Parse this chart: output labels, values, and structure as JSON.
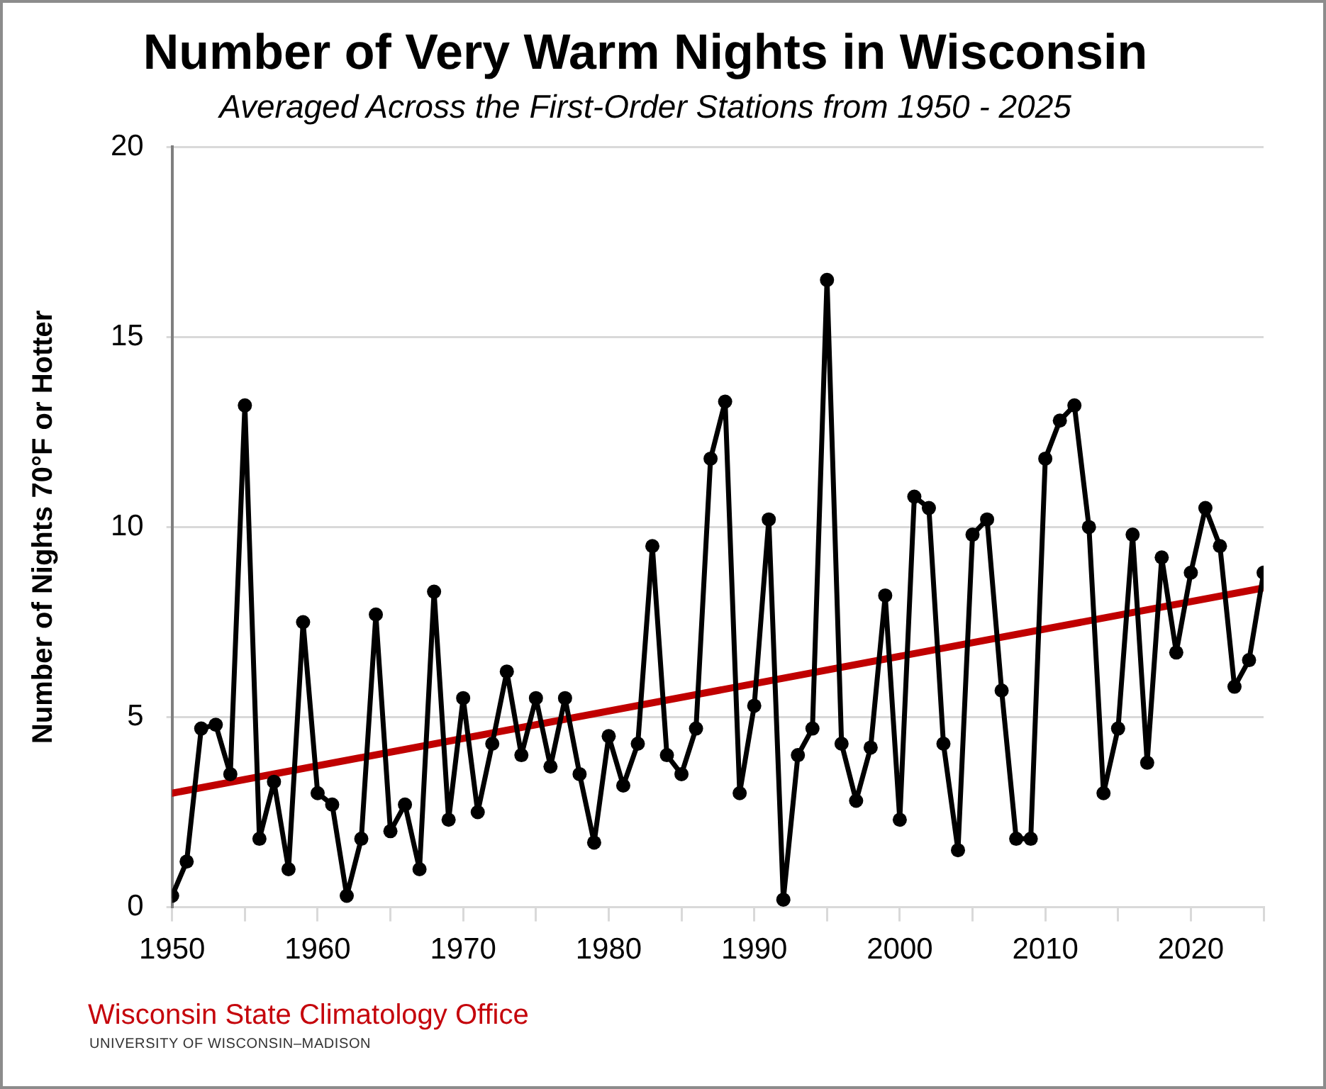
{
  "chart_data": {
    "type": "line",
    "title": "Number of Very Warm Nights in Wisconsin",
    "subtitle": "Averaged Across the First-Order Stations from 1950 - 2025",
    "ylabel": "Number of Nights 70°F or Hotter",
    "x": [
      1950,
      1951,
      1952,
      1953,
      1954,
      1955,
      1956,
      1957,
      1958,
      1959,
      1960,
      1961,
      1962,
      1963,
      1964,
      1965,
      1966,
      1967,
      1968,
      1969,
      1970,
      1971,
      1972,
      1973,
      1974,
      1975,
      1976,
      1977,
      1978,
      1979,
      1980,
      1981,
      1982,
      1983,
      1984,
      1985,
      1986,
      1987,
      1988,
      1989,
      1990,
      1991,
      1992,
      1993,
      1994,
      1995,
      1996,
      1997,
      1998,
      1999,
      2000,
      2001,
      2002,
      2003,
      2004,
      2005,
      2006,
      2007,
      2008,
      2009,
      2010,
      2011,
      2012,
      2013,
      2014,
      2015,
      2016,
      2017,
      2018,
      2019,
      2020,
      2021,
      2022,
      2023,
      2024,
      2025
    ],
    "series": [
      {
        "color": "#000000",
        "values": [
          0.3,
          1.2,
          4.7,
          4.8,
          3.5,
          13.2,
          1.8,
          3.3,
          1.0,
          7.5,
          3.0,
          2.7,
          0.3,
          1.8,
          7.7,
          2.0,
          2.7,
          1.0,
          8.3,
          2.3,
          5.5,
          2.5,
          4.3,
          6.2,
          4.0,
          5.5,
          3.7,
          5.5,
          3.5,
          1.7,
          4.5,
          3.2,
          4.3,
          9.5,
          4.0,
          3.5,
          4.7,
          11.8,
          13.3,
          3.0,
          5.3,
          10.2,
          0.2,
          4.0,
          4.7,
          16.5,
          4.3,
          2.8,
          4.2,
          8.2,
          2.3,
          10.8,
          10.5,
          4.3,
          1.5,
          9.8,
          10.2,
          5.7,
          1.8,
          1.8,
          11.8,
          12.8,
          13.2,
          10.0,
          3.0,
          4.7,
          9.8,
          3.8,
          9.2,
          6.7,
          8.8,
          10.5,
          9.5,
          5.8,
          6.5,
          8.8
        ]
      },
      {
        "type": "line",
        "color": "#c00000",
        "x": [
          1950,
          2025
        ],
        "values": [
          3.0,
          8.4
        ],
        "marker": "none"
      }
    ],
    "xlim": [
      1950,
      2025
    ],
    "xticks": [
      1950,
      {
        "value": 1955,
        "label": null
      },
      1960,
      {
        "value": 1965,
        "label": null
      },
      1970,
      {
        "value": 1975,
        "label": null
      },
      1980,
      {
        "value": 1985,
        "label": null
      },
      1990,
      {
        "value": 1995,
        "label": null
      },
      2000,
      {
        "value": 2005,
        "label": null
      },
      2010,
      {
        "value": 2015,
        "label": null
      },
      2020,
      {
        "value": 2025,
        "label": null
      }
    ],
    "ylim": [
      0,
      20
    ],
    "yticks": [
      0,
      5,
      10,
      15,
      20
    ],
    "grid": "y",
    "legend": false,
    "marker": "circle",
    "annotations": [
      "Wisconsin State Climatology Office",
      "UNIVERSITY OF WISCONSIN–MADISON"
    ]
  }
}
